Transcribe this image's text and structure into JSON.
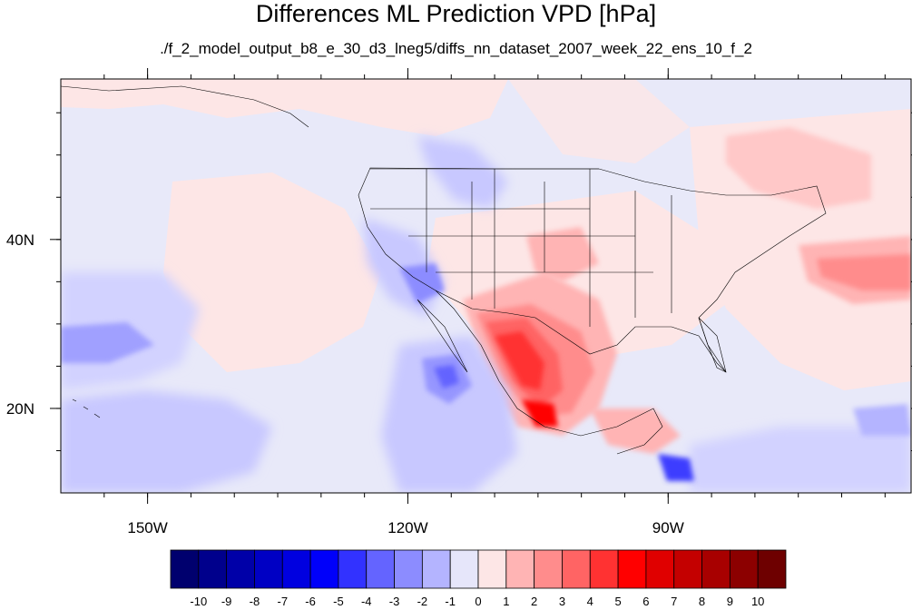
{
  "title": "Differences ML Prediction VPD [hPa]",
  "subtitle": "./f_2_model_output_b8_e_30_d3_lneg5/diffs_nn_dataset_2007_week_22_ens_10_f_2",
  "map": {
    "lon_range": [
      -160,
      -62
    ],
    "lat_range": [
      10,
      59
    ],
    "lon_ticks": [
      {
        "value": -150,
        "label": "150W"
      },
      {
        "value": -120,
        "label": "120W"
      },
      {
        "value": -90,
        "label": "90W"
      }
    ],
    "lat_ticks": [
      {
        "value": 40,
        "label": "40N"
      },
      {
        "value": 20,
        "label": "20N"
      }
    ],
    "ocean_color": "#e8e9f9"
  },
  "colorbar": {
    "labels": [
      "-10",
      "-9",
      "-8",
      "-7",
      "-6",
      "-5",
      "-4",
      "-3",
      "-2",
      "-1",
      "0",
      "1",
      "2",
      "3",
      "4",
      "5",
      "6",
      "7",
      "8",
      "9",
      "10"
    ],
    "colors": [
      "#00006e",
      "#00008c",
      "#0000a8",
      "#0000c4",
      "#0000e0",
      "#0000fa",
      "#3232ff",
      "#6464ff",
      "#8c8cff",
      "#b4b4ff",
      "#e6e6fa",
      "#fde6e6",
      "#ffb4b4",
      "#ff8c8c",
      "#ff6464",
      "#ff3232",
      "#ff0000",
      "#e00000",
      "#c40000",
      "#a80000",
      "#8c0000",
      "#6e0000"
    ]
  }
}
